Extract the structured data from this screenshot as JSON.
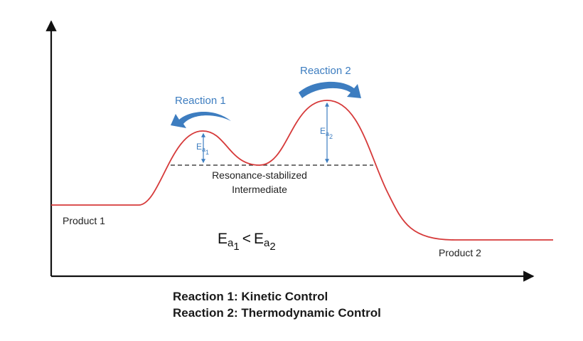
{
  "reactions": {
    "reaction1_label": "Reaction 1",
    "reaction2_label": "Reaction 2"
  },
  "activation": {
    "ea1_main": "E",
    "ea1_sub": "a",
    "ea1_subsub": "1",
    "ea2_main": "E",
    "ea2_sub": "a",
    "ea2_subsub": "2"
  },
  "intermediate": {
    "line1": "Resonance-stabilized",
    "line2": "Intermediate"
  },
  "products": {
    "product1": "Product 1",
    "product2": "Product 2"
  },
  "inequality": {
    "left_main": "E",
    "left_sub": "a",
    "left_subsub": "1",
    "operator": "<",
    "right_main": "E",
    "right_sub": "a",
    "right_subsub": "2"
  },
  "captions": {
    "line1": "Reaction 1: Kinetic Control",
    "line2": "Reaction 2: Thermodynamic Control"
  },
  "colors": {
    "curve": "#d63a3a",
    "accent_blue": "#3d7dc0",
    "axis": "#111111"
  }
}
